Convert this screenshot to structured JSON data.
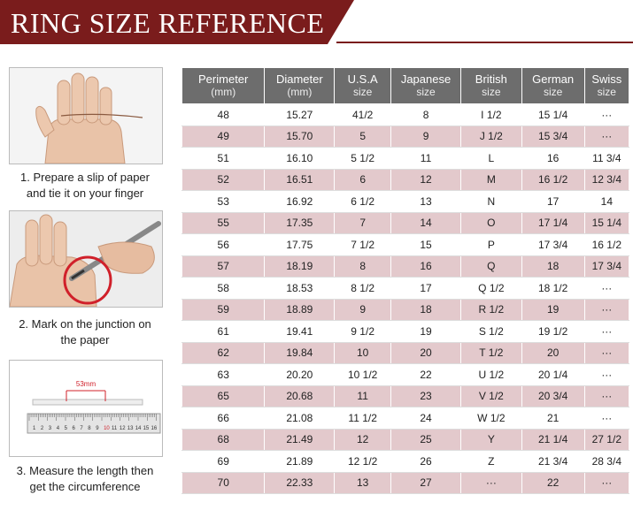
{
  "title": "RING SIZE REFERENCE",
  "steps": [
    {
      "caption_line1": "1. Prepare a slip of paper",
      "caption_line2": "and tie it on your finger",
      "icon": "hand-with-paper-icon"
    },
    {
      "caption_line1": "2. Mark on the junction on",
      "caption_line2": "the paper",
      "icon": "hand-marking-pen-icon"
    },
    {
      "caption_line1": "3. Measure the length then",
      "caption_line2": "get the circumference",
      "icon": "ruler-icon",
      "measure_label": "53mm",
      "ruler_numbers": [
        "1",
        "2",
        "3",
        "4",
        "5",
        "6",
        "7",
        "8",
        "9",
        "10",
        "11",
        "12",
        "13",
        "14",
        "15",
        "16"
      ]
    }
  ],
  "table": {
    "headers": [
      {
        "line1": "Perimeter",
        "line2": "(mm)"
      },
      {
        "line1": "Diameter",
        "line2": "(mm)"
      },
      {
        "line1": "U.S.A",
        "line2": "size"
      },
      {
        "line1": "Japanese",
        "line2": "size"
      },
      {
        "line1": "British",
        "line2": "size"
      },
      {
        "line1": "German",
        "line2": "size"
      },
      {
        "line1": "Swiss",
        "line2": "size"
      }
    ],
    "rows": [
      [
        "48",
        "15.27",
        "41/2",
        "8",
        "I 1/2",
        "15 1/4",
        "···"
      ],
      [
        "49",
        "15.70",
        "5",
        "9",
        "J 1/2",
        "15 3/4",
        "···"
      ],
      [
        "51",
        "16.10",
        "5 1/2",
        "11",
        "L",
        "16",
        "11 3/4"
      ],
      [
        "52",
        "16.51",
        "6",
        "12",
        "M",
        "16 1/2",
        "12 3/4"
      ],
      [
        "53",
        "16.92",
        "6 1/2",
        "13",
        "N",
        "17",
        "14"
      ],
      [
        "55",
        "17.35",
        "7",
        "14",
        "O",
        "17 1/4",
        "15 1/4"
      ],
      [
        "56",
        "17.75",
        "7 1/2",
        "15",
        "P",
        "17 3/4",
        "16 1/2"
      ],
      [
        "57",
        "18.19",
        "8",
        "16",
        "Q",
        "18",
        "17 3/4"
      ],
      [
        "58",
        "18.53",
        "8 1/2",
        "17",
        "Q  1/2",
        "18 1/2",
        "···"
      ],
      [
        "59",
        "18.89",
        "9",
        "18",
        "R 1/2",
        "19",
        "···"
      ],
      [
        "61",
        "19.41",
        "9 1/2",
        "19",
        "S 1/2",
        "19 1/2",
        "···"
      ],
      [
        "62",
        "19.84",
        "10",
        "20",
        "T 1/2",
        "20",
        "···"
      ],
      [
        "63",
        "20.20",
        "10 1/2",
        "22",
        "U 1/2",
        "20 1/4",
        "···"
      ],
      [
        "65",
        "20.68",
        "11",
        "23",
        "V 1/2",
        "20 3/4",
        "···"
      ],
      [
        "66",
        "21.08",
        "11 1/2",
        "24",
        "W 1/2",
        "21",
        "···"
      ],
      [
        "68",
        "21.49",
        "12",
        "25",
        "Y",
        "21 1/4",
        "27 1/2"
      ],
      [
        "69",
        "21.89",
        "12 1/2",
        "26",
        "Z",
        "21 3/4",
        "28 3/4"
      ],
      [
        "70",
        "22.33",
        "13",
        "27",
        "···",
        "22",
        "···"
      ]
    ]
  },
  "colors": {
    "banner": "#7a1c1c",
    "header": "#6d6d6d",
    "stripe": "#e3c9cc"
  }
}
